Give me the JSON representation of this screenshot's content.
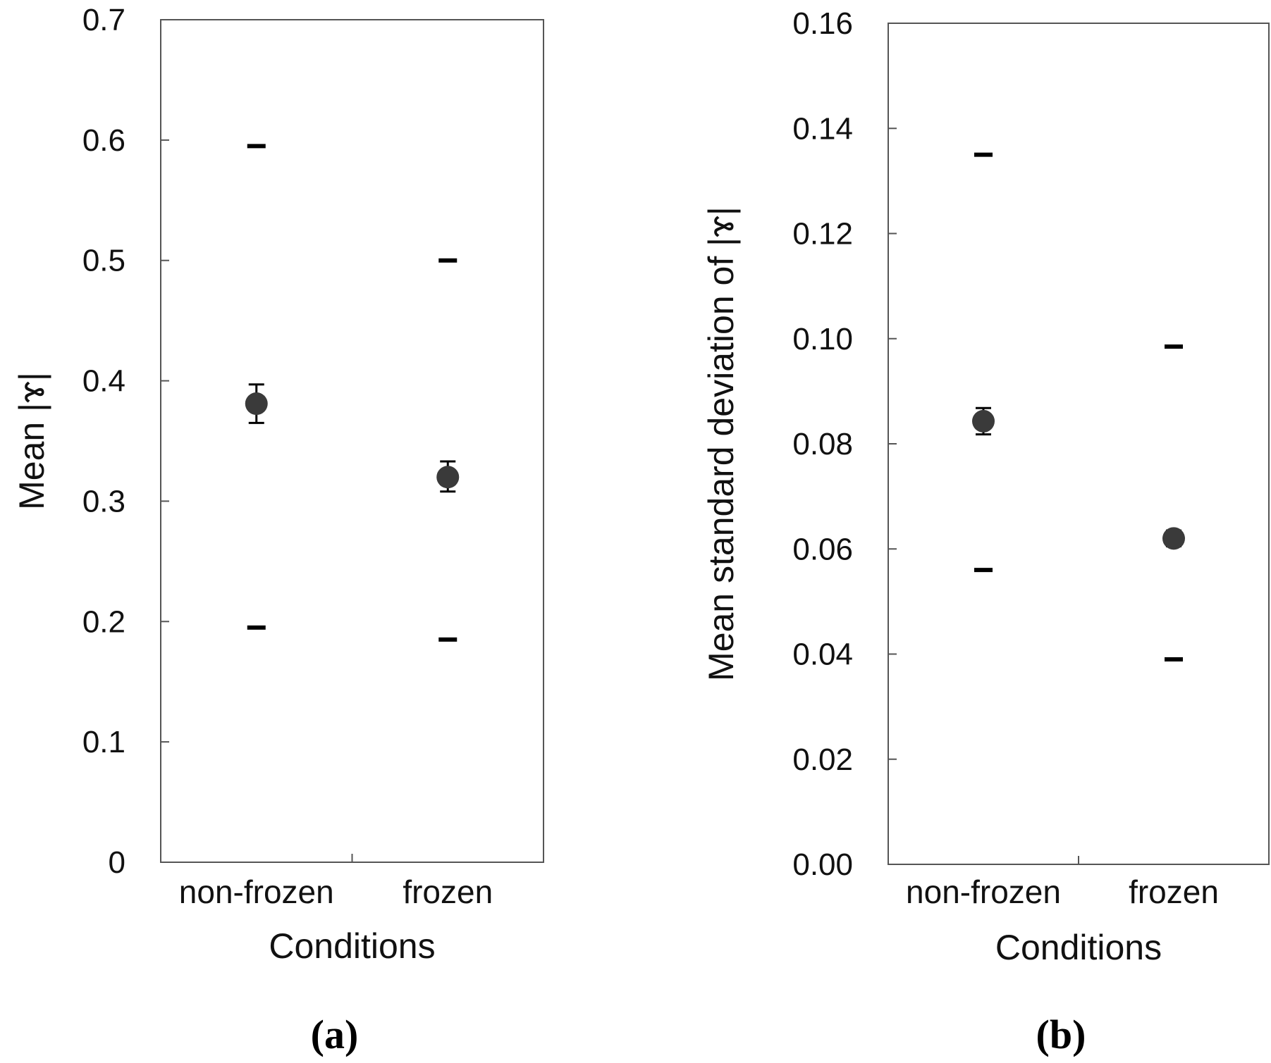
{
  "chart_data": [
    {
      "type": "scatter",
      "panel_label": "(a)",
      "title": "",
      "xlabel": "Conditions",
      "ylabel": "Mean |ɤ|",
      "categories": [
        "non-frozen",
        "frozen"
      ],
      "ylim": [
        0,
        0.7
      ],
      "yticks": [
        "0",
        "0.1",
        "0.2",
        "0.3",
        "0.4",
        "0.5",
        "0.6",
        "0.7"
      ],
      "ytick_values": [
        0,
        0.1,
        0.2,
        0.3,
        0.4,
        0.5,
        0.6,
        0.7
      ],
      "series": [
        {
          "name": "mean",
          "values": [
            0.381,
            0.32
          ]
        },
        {
          "name": "error_low",
          "values": [
            0.365,
            0.308
          ]
        },
        {
          "name": "error_high",
          "values": [
            0.397,
            0.333
          ]
        },
        {
          "name": "max",
          "values": [
            0.595,
            0.5
          ]
        },
        {
          "name": "min",
          "values": [
            0.195,
            0.185
          ]
        }
      ]
    },
    {
      "type": "scatter",
      "panel_label": "(b)",
      "title": "",
      "xlabel": "Conditions",
      "ylabel": "Mean standard deviation of |ɤ|",
      "categories": [
        "non-frozen",
        "frozen"
      ],
      "ylim": [
        0,
        0.16
      ],
      "yticks": [
        "0.00",
        "0.02",
        "0.04",
        "0.06",
        "0.08",
        "0.10",
        "0.12",
        "0.14",
        "0.16"
      ],
      "ytick_values": [
        0,
        0.02,
        0.04,
        0.06,
        0.08,
        0.1,
        0.12,
        0.14,
        0.16
      ],
      "series": [
        {
          "name": "mean",
          "values": [
            0.0843,
            0.062
          ]
        },
        {
          "name": "error_low",
          "values": [
            0.0818,
            0.0605
          ]
        },
        {
          "name": "error_high",
          "values": [
            0.0868,
            0.0635
          ]
        },
        {
          "name": "max",
          "values": [
            0.135,
            0.0985
          ]
        },
        {
          "name": "min",
          "values": [
            0.056,
            0.039
          ]
        }
      ]
    }
  ]
}
